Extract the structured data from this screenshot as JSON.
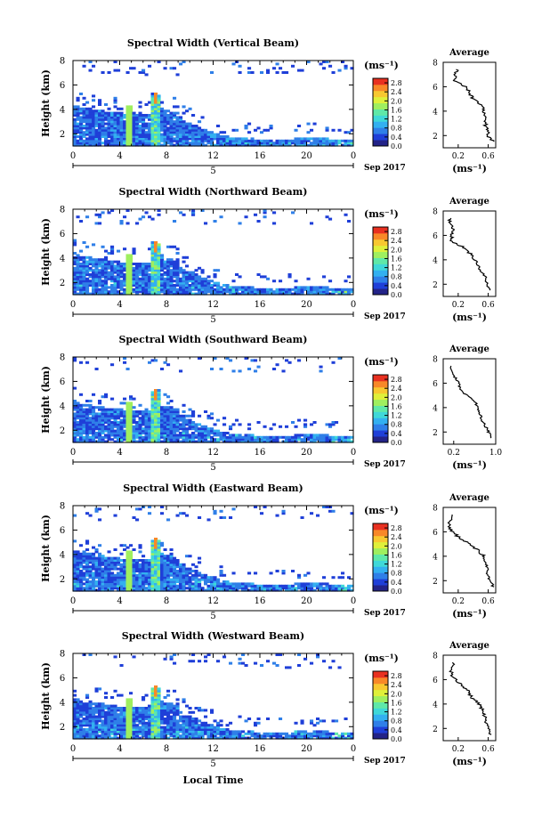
{
  "colors": {
    "scale": [
      "#232388",
      "#1f3fd8",
      "#2f7fe8",
      "#33b0f0",
      "#3fd8d8",
      "#5fe8a8",
      "#9fef5f",
      "#dff03a",
      "#f8c830",
      "#f88828",
      "#e83020"
    ],
    "axis": "#000000",
    "profile": "#000000"
  },
  "shared": {
    "unit_label": "(ms⁻¹)",
    "ylabel": "Height (km)",
    "date_label": "Sep 2017",
    "day_label": "5",
    "xlabel": "Local Time",
    "profile_title": "Average",
    "profile_xlabel": "(ms⁻¹)",
    "x_ticks": [
      "0",
      "4",
      "8",
      "12",
      "16",
      "20",
      "0"
    ],
    "y_ticks": [
      "2",
      "4",
      "6",
      "8"
    ],
    "colorbar_ticks": [
      "2.8",
      "2.4",
      "2.0",
      "1.6",
      "1.2",
      "0.8",
      "0.4",
      "0.0"
    ]
  },
  "chart_data": [
    {
      "type": "heatmap",
      "title": "Spectral Width (Vertical Beam)",
      "xlim": [
        0,
        24
      ],
      "ylim": [
        1,
        8
      ],
      "colorbar_range": [
        0.0,
        3.0
      ],
      "profile": {
        "title": "Average",
        "xlim": [
          0.0,
          0.7
        ],
        "x_ticks": [
          "0.2",
          "0.6"
        ],
        "heights": [
          1.5,
          2,
          2.5,
          3,
          3.5,
          4,
          4.5,
          5,
          5.5,
          6,
          6.5,
          7,
          7.5
        ],
        "values": [
          0.66,
          0.6,
          0.58,
          0.56,
          0.55,
          0.54,
          0.52,
          0.4,
          0.35,
          0.3,
          0.14,
          0.16,
          0.2
        ]
      }
    },
    {
      "type": "heatmap",
      "title": "Spectral Width (Northward Beam)",
      "xlim": [
        0,
        24
      ],
      "ylim": [
        1,
        8
      ],
      "colorbar_range": [
        0.0,
        3.0
      ],
      "profile": {
        "title": "Average",
        "xlim": [
          0.0,
          0.7
        ],
        "x_ticks": [
          "0.2",
          "0.6"
        ],
        "heights": [
          1.5,
          2,
          2.5,
          3,
          3.5,
          4,
          4.5,
          5,
          5.5,
          6,
          6.5,
          7,
          7.5
        ],
        "values": [
          0.62,
          0.58,
          0.56,
          0.52,
          0.46,
          0.42,
          0.36,
          0.28,
          0.1,
          0.12,
          0.14,
          0.1,
          0.08
        ]
      }
    },
    {
      "type": "heatmap",
      "title": "Spectral Width (Southward Beam)",
      "xlim": [
        0,
        24
      ],
      "ylim": [
        1,
        8
      ],
      "colorbar_range": [
        0.0,
        3.0
      ],
      "profile": {
        "title": "Average",
        "xlim": [
          0.0,
          1.0
        ],
        "x_ticks": [
          "0.2",
          "1.0"
        ],
        "heights": [
          1.5,
          2,
          2.5,
          3,
          3.5,
          4,
          4.5,
          5,
          5.5,
          6,
          6.5,
          7,
          7.5
        ],
        "values": [
          0.92,
          0.86,
          0.8,
          0.74,
          0.7,
          0.66,
          0.6,
          0.45,
          0.32,
          0.3,
          0.22,
          0.16,
          0.12
        ]
      }
    },
    {
      "type": "heatmap",
      "title": "Spectral Width (Eastward Beam)",
      "xlim": [
        0,
        24
      ],
      "ylim": [
        1,
        8
      ],
      "colorbar_range": [
        0.0,
        3.0
      ],
      "profile": {
        "title": "Average",
        "xlim": [
          0.0,
          0.7
        ],
        "x_ticks": [
          "0.2",
          "0.6"
        ],
        "heights": [
          1.5,
          2,
          2.5,
          3,
          3.5,
          4,
          4.5,
          5,
          5.5,
          6,
          6.5,
          7,
          7.5
        ],
        "values": [
          0.66,
          0.63,
          0.6,
          0.58,
          0.56,
          0.54,
          0.46,
          0.36,
          0.22,
          0.12,
          0.08,
          0.1,
          0.12
        ]
      }
    },
    {
      "type": "heatmap",
      "title": "Spectral Width (Westward Beam)",
      "xlim": [
        0,
        24
      ],
      "ylim": [
        1,
        8
      ],
      "colorbar_range": [
        0.0,
        3.0
      ],
      "profile": {
        "title": "Average",
        "xlim": [
          0.0,
          0.7
        ],
        "x_ticks": [
          "0.2",
          "0.6"
        ],
        "heights": [
          1.5,
          2,
          2.5,
          3,
          3.5,
          4,
          4.5,
          5,
          5.5,
          6,
          6.5,
          7,
          7.5
        ],
        "values": [
          0.64,
          0.6,
          0.58,
          0.56,
          0.52,
          0.48,
          0.38,
          0.34,
          0.26,
          0.16,
          0.1,
          0.12,
          0.14
        ]
      }
    }
  ]
}
